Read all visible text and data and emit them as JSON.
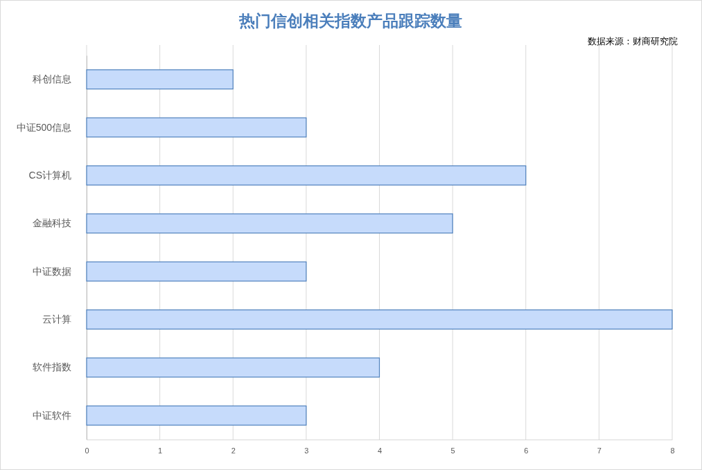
{
  "chart_data": {
    "type": "bar",
    "orientation": "horizontal",
    "title": "热门信创相关指数产品跟踪数量",
    "annotations": [
      "数据来源：财商研究院"
    ],
    "categories": [
      "科创信息",
      "中证500信息",
      "CS计算机",
      "金融科技",
      "中证数据",
      "云计算",
      "软件指数",
      "中证软件"
    ],
    "values": [
      2,
      3,
      6,
      5,
      3,
      8,
      4,
      3
    ],
    "color": "#c6dbfb",
    "xlim": [
      0,
      8
    ],
    "xticks": [
      0,
      1,
      2,
      3,
      4,
      5,
      6,
      7,
      8
    ],
    "grid": "x"
  }
}
